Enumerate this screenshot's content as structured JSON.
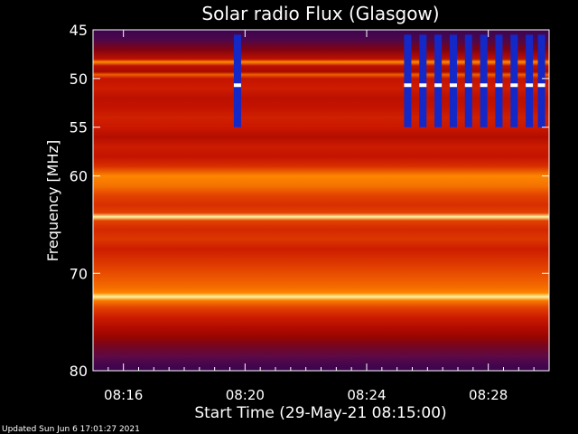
{
  "chart_data": {
    "type": "heatmap",
    "title": "Solar radio Flux (Glasgow)",
    "xlabel": "Start Time (29-May-21 08:15:00)",
    "ylabel": "Frequency [MHz]",
    "footer": "Updated Sun Jun  6 17:01:27 2021",
    "xlim_minutes_after_start": [
      0,
      15
    ],
    "ylim_mhz": [
      45,
      80
    ],
    "y_inverted": true,
    "x_ticks": [
      {
        "label": "08:16",
        "minute": 1
      },
      {
        "label": "08:20",
        "minute": 5
      },
      {
        "label": "08:24",
        "minute": 9
      },
      {
        "label": "08:28",
        "minute": 13
      }
    ],
    "y_ticks": [
      {
        "label": "45",
        "mhz": 45
      },
      {
        "label": "50",
        "mhz": 50
      },
      {
        "label": "55",
        "mhz": 55
      },
      {
        "label": "60",
        "mhz": 60
      },
      {
        "label": "70",
        "mhz": 70
      },
      {
        "label": "80",
        "mhz": 80
      }
    ],
    "colormap": [
      "#2a0050",
      "#5c0a4a",
      "#8a0000",
      "#c81400",
      "#e84a00",
      "#ff8c00",
      "#ffd23c",
      "#fff5a0"
    ],
    "frequency_profile": [
      {
        "mhz": 45.0,
        "level": 0.05
      },
      {
        "mhz": 46.0,
        "level": 0.1
      },
      {
        "mhz": 47.0,
        "level": 0.25
      },
      {
        "mhz": 48.0,
        "level": 0.4
      },
      {
        "mhz": 48.3,
        "level": 0.72
      },
      {
        "mhz": 48.7,
        "level": 0.4
      },
      {
        "mhz": 49.3,
        "level": 0.35
      },
      {
        "mhz": 49.6,
        "level": 0.62
      },
      {
        "mhz": 50.0,
        "level": 0.42
      },
      {
        "mhz": 51.0,
        "level": 0.45
      },
      {
        "mhz": 52.0,
        "level": 0.4
      },
      {
        "mhz": 53.0,
        "level": 0.42
      },
      {
        "mhz": 54.0,
        "level": 0.46
      },
      {
        "mhz": 55.0,
        "level": 0.44
      },
      {
        "mhz": 56.0,
        "level": 0.38
      },
      {
        "mhz": 57.0,
        "level": 0.45
      },
      {
        "mhz": 58.0,
        "level": 0.42
      },
      {
        "mhz": 59.0,
        "level": 0.5
      },
      {
        "mhz": 60.0,
        "level": 0.7
      },
      {
        "mhz": 61.0,
        "level": 0.66
      },
      {
        "mhz": 62.0,
        "level": 0.55
      },
      {
        "mhz": 63.0,
        "level": 0.5
      },
      {
        "mhz": 63.8,
        "level": 0.55
      },
      {
        "mhz": 64.2,
        "level": 1.0
      },
      {
        "mhz": 64.6,
        "level": 0.55
      },
      {
        "mhz": 65.5,
        "level": 0.48
      },
      {
        "mhz": 66.5,
        "level": 0.52
      },
      {
        "mhz": 67.5,
        "level": 0.45
      },
      {
        "mhz": 68.5,
        "level": 0.5
      },
      {
        "mhz": 69.5,
        "level": 0.55
      },
      {
        "mhz": 70.5,
        "level": 0.6
      },
      {
        "mhz": 71.5,
        "level": 0.65
      },
      {
        "mhz": 72.0,
        "level": 0.7
      },
      {
        "mhz": 72.4,
        "level": 1.0
      },
      {
        "mhz": 72.8,
        "level": 0.68
      },
      {
        "mhz": 73.5,
        "level": 0.55
      },
      {
        "mhz": 74.5,
        "level": 0.45
      },
      {
        "mhz": 75.5,
        "level": 0.38
      },
      {
        "mhz": 76.5,
        "level": 0.32
      },
      {
        "mhz": 77.5,
        "level": 0.22
      },
      {
        "mhz": 78.5,
        "level": 0.15
      },
      {
        "mhz": 79.3,
        "level": 0.08
      },
      {
        "mhz": 80.0,
        "level": 0.05
      }
    ],
    "interference_bursts": [
      {
        "minute": 4.75,
        "mhz_from": 45.5,
        "mhz_to": 55.0
      },
      {
        "minute": 10.35,
        "mhz_from": 45.5,
        "mhz_to": 55.0
      },
      {
        "minute": 10.85,
        "mhz_from": 45.5,
        "mhz_to": 55.0
      },
      {
        "minute": 11.35,
        "mhz_from": 45.5,
        "mhz_to": 55.0
      },
      {
        "minute": 11.85,
        "mhz_from": 45.5,
        "mhz_to": 55.0
      },
      {
        "minute": 12.35,
        "mhz_from": 45.5,
        "mhz_to": 55.0
      },
      {
        "minute": 12.85,
        "mhz_from": 45.5,
        "mhz_to": 55.0
      },
      {
        "minute": 13.35,
        "mhz_from": 45.5,
        "mhz_to": 55.0
      },
      {
        "minute": 13.85,
        "mhz_from": 45.5,
        "mhz_to": 55.0
      },
      {
        "minute": 14.35,
        "mhz_from": 45.5,
        "mhz_to": 55.0
      },
      {
        "minute": 14.75,
        "mhz_from": 45.5,
        "mhz_to": 55.0
      }
    ],
    "grid": false,
    "legend": "none"
  }
}
